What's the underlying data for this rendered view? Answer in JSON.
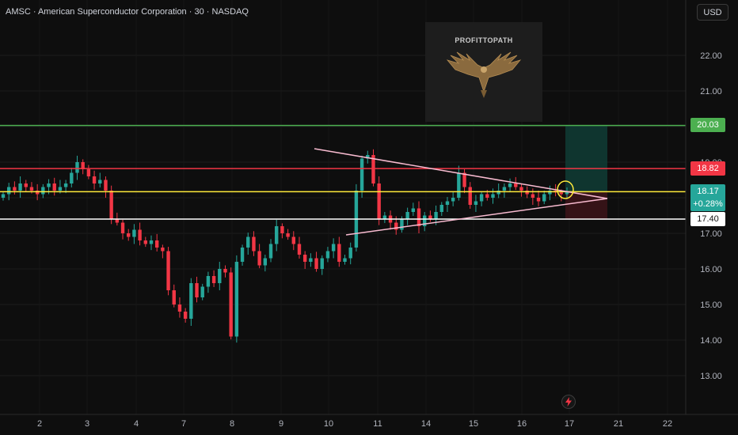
{
  "header": {
    "symbol": "AMSC",
    "name": "American Superconductor Corporation",
    "interval": "30",
    "exchange": "NASDAQ"
  },
  "currency_label": "USD",
  "logo_text": "PROFITTOPATH",
  "levels": {
    "resistance_top": "20.03",
    "resistance": "18.82",
    "support": "17.40"
  },
  "last_price": {
    "value": "18.17",
    "change": "+0.28%"
  },
  "colors": {
    "up": "#26a69a",
    "down": "#f23645",
    "green_line": "#4caf50",
    "red_line": "#f23645",
    "yellow_line": "#ffeb3b",
    "white_line": "#ffffff",
    "triangle": "#f8bbd0"
  },
  "icons": {
    "alert": "lightning-icon"
  },
  "chart_data": {
    "type": "candlestick",
    "title": "AMSC · American Superconductor Corporation · 30 · NASDAQ",
    "ylim": [
      12.3,
      23.0
    ],
    "y_ticks": [
      "22.00",
      "21.00",
      "20.00",
      "19.00",
      "18.00",
      "17.00",
      "16.00",
      "15.00",
      "14.00",
      "13.00"
    ],
    "x_ticks": [
      "2",
      "3",
      "4",
      "7",
      "8",
      "9",
      "10",
      "11",
      "14",
      "15",
      "16",
      "17",
      "21",
      "22"
    ],
    "horizontal_levels": [
      20.03,
      18.82,
      18.17,
      17.4
    ],
    "triangle": {
      "upper": [
        [
          "9",
          19.32
        ],
        [
          "16.8",
          18.17
        ]
      ],
      "lower": [
        [
          "10",
          16.92
        ],
        [
          "16.8",
          18.17
        ]
      ]
    },
    "series_note": "approximate candle path read from chart",
    "closes": [
      18.1,
      18.3,
      18.2,
      18.4,
      18.3,
      18.2,
      18.1,
      18.3,
      18.4,
      18.2,
      18.3,
      18.4,
      18.7,
      19.0,
      18.8,
      18.6,
      18.4,
      18.5,
      18.2,
      17.4,
      17.3,
      17.0,
      16.9,
      17.1,
      16.8,
      16.7,
      16.8,
      16.6,
      16.5,
      15.4,
      15.0,
      14.8,
      14.6,
      15.6,
      15.2,
      15.5,
      15.8,
      15.6,
      16.0,
      15.9,
      14.1,
      16.2,
      16.6,
      16.9,
      16.5,
      16.1,
      16.3,
      16.7,
      17.2,
      17.0,
      16.9,
      16.7,
      16.4,
      16.2,
      16.3,
      16.0,
      16.3,
      16.5,
      16.7,
      16.2,
      16.3,
      16.6,
      18.2,
      19.1,
      19.2,
      18.4,
      17.4,
      17.5,
      17.3,
      17.1,
      17.4,
      17.6,
      17.7,
      17.2,
      17.5,
      17.4,
      17.6,
      17.8,
      17.9,
      18.0,
      18.7,
      18.3,
      17.8,
      17.9,
      18.1,
      18.0,
      18.1,
      18.2,
      18.3,
      18.4,
      18.3,
      18.2,
      18.1,
      18.0,
      17.9,
      18.1,
      18.2,
      18.15,
      18.1,
      18.17
    ]
  }
}
